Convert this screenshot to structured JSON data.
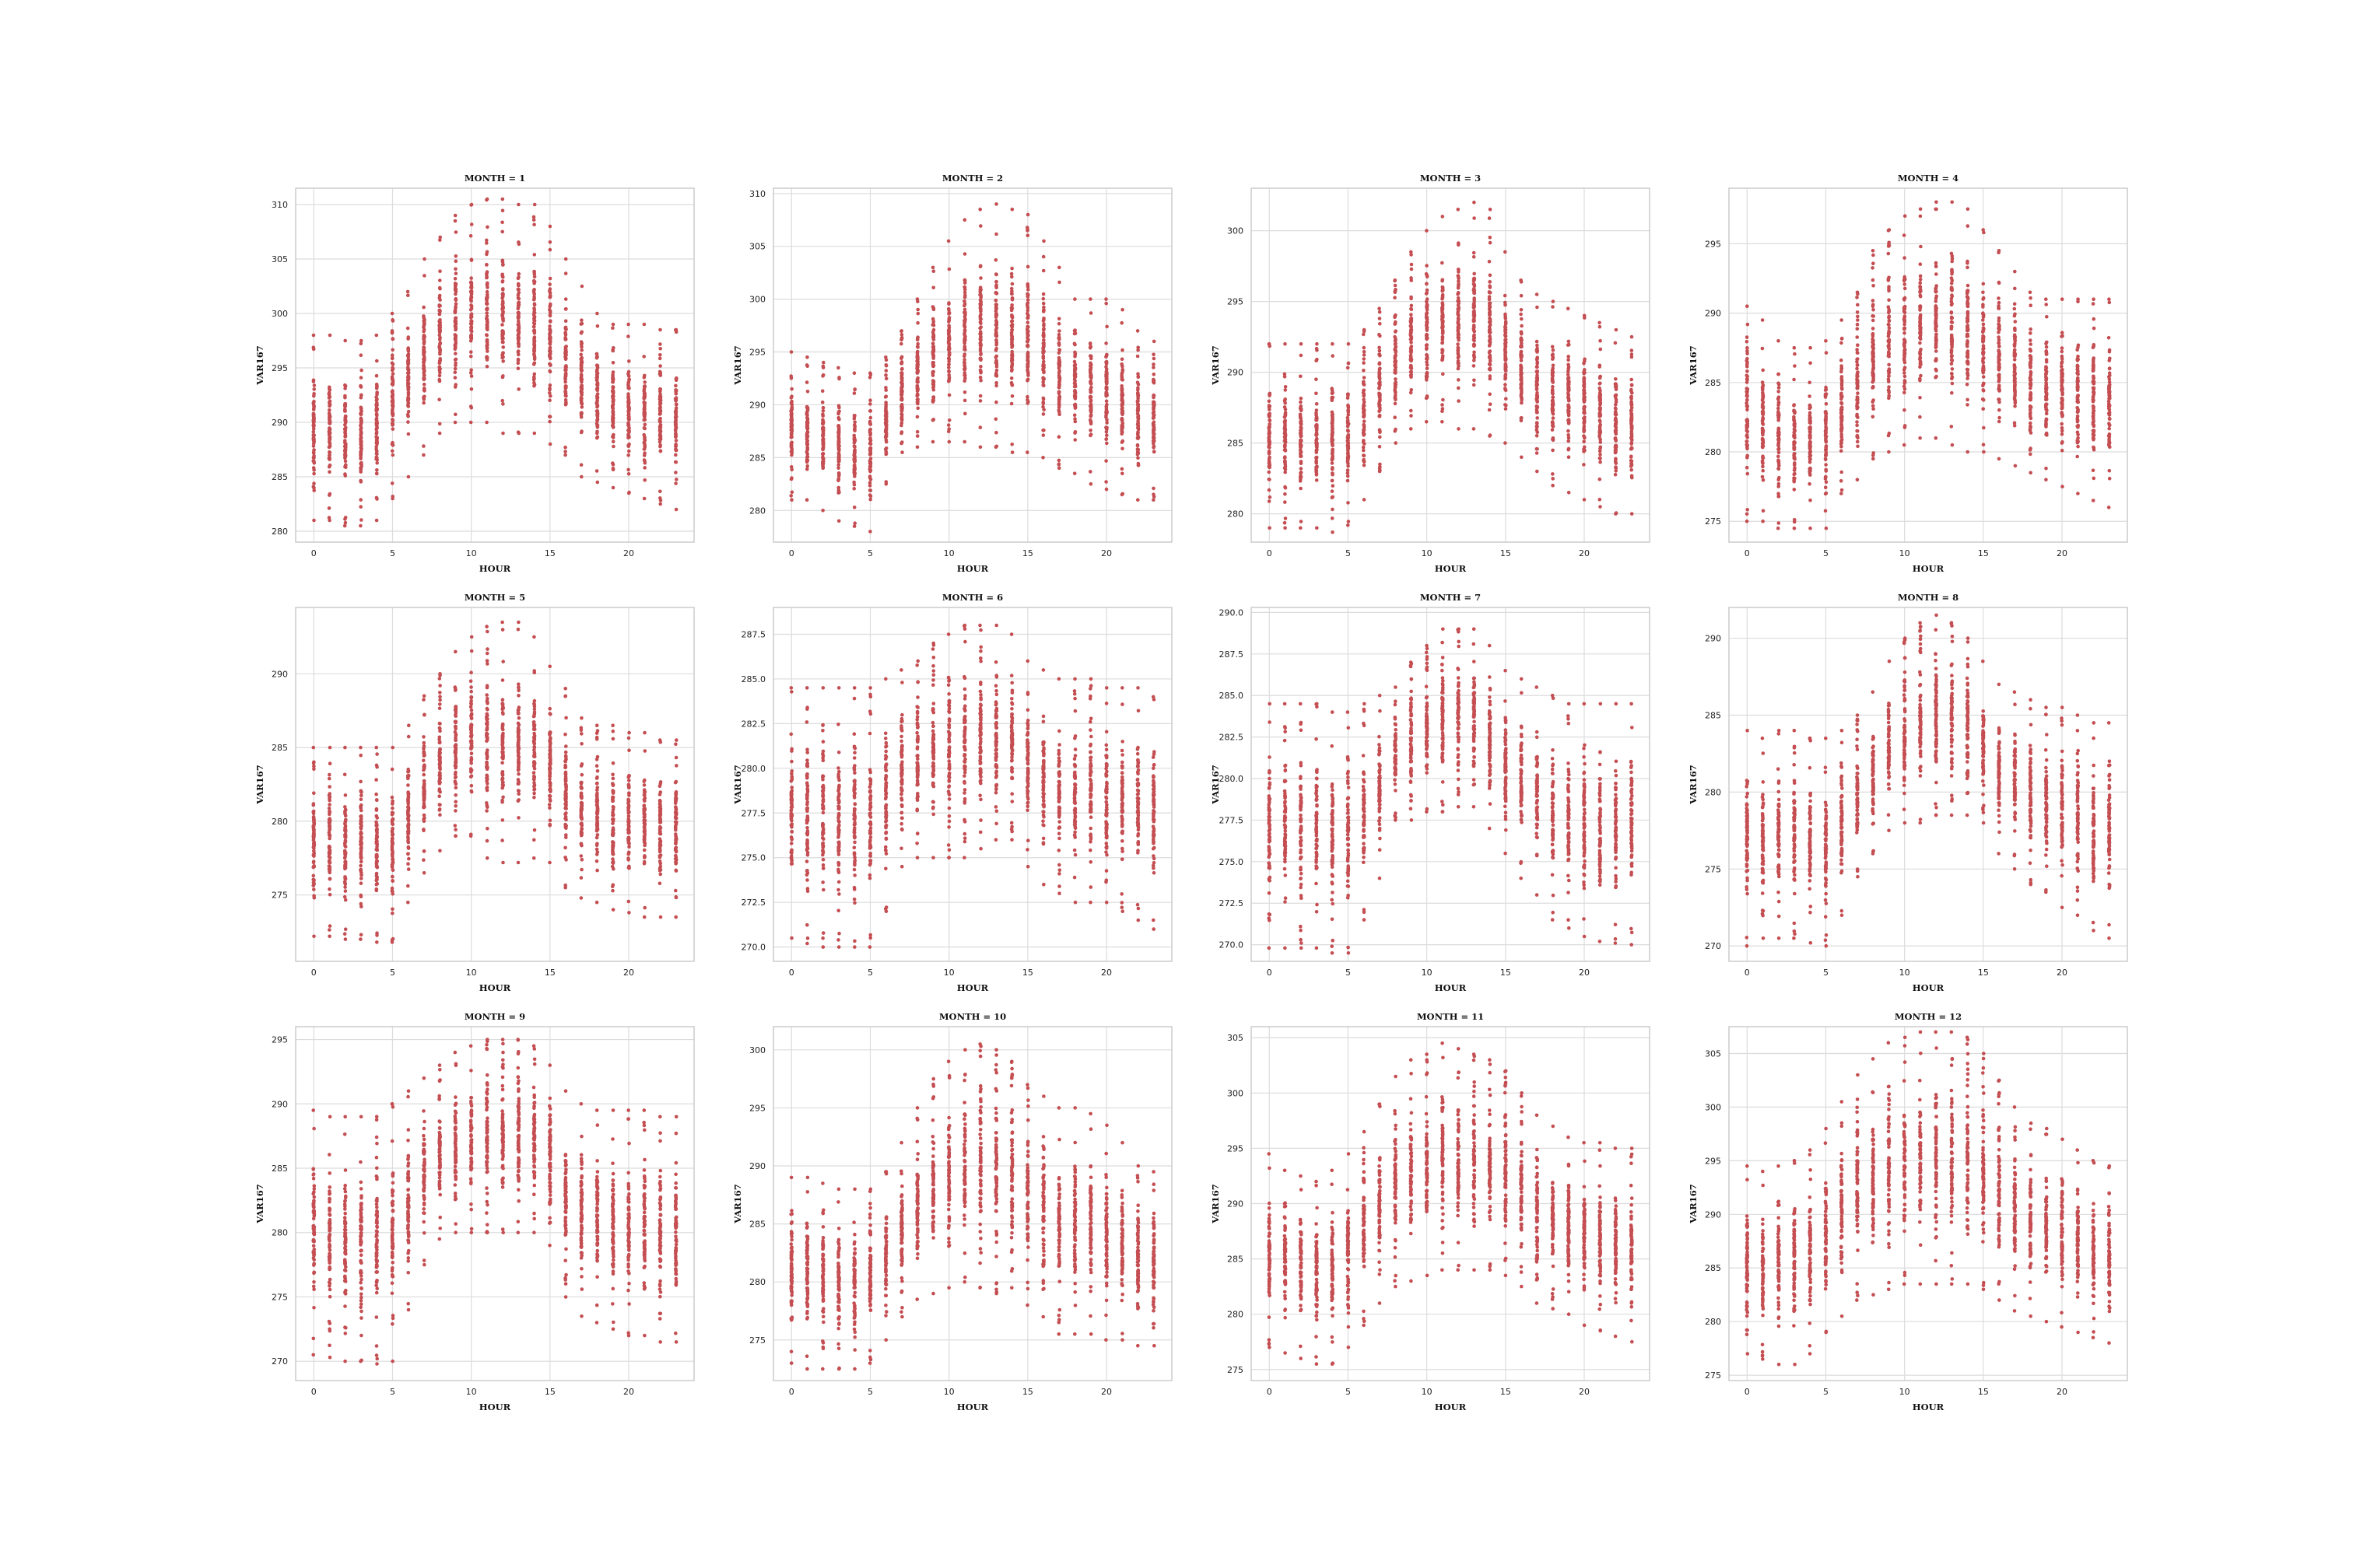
{
  "figure": {
    "panel_title_prefix": "MONTH = ",
    "xlabel": "HOUR",
    "ylabel": "VAR167",
    "point_color": "#c44e52",
    "grid": true
  },
  "chart_data": [
    {
      "type": "scatter",
      "title": "MONTH = 1",
      "xlabel": "HOUR",
      "ylabel": "VAR167",
      "xlim": [
        -1.15,
        24.15
      ],
      "ylim": [
        279,
        311.5
      ],
      "xticks": [
        0,
        5,
        10,
        15,
        20
      ],
      "yticks": [
        280,
        285,
        290,
        295,
        300,
        305,
        310
      ],
      "hourly_min": [
        281,
        281,
        280.5,
        280.5,
        281,
        283,
        285,
        287,
        289,
        290,
        290,
        290,
        289,
        289,
        289,
        288,
        287,
        285,
        284.5,
        284,
        283.5,
        283,
        282.5,
        282
      ],
      "hourly_max": [
        298,
        298,
        297.5,
        297.5,
        298,
        300,
        302,
        305,
        307,
        309,
        310,
        310.5,
        310.5,
        310,
        310,
        308,
        305,
        302.5,
        300,
        299,
        299,
        299,
        298.5,
        298.5
      ]
    },
    {
      "type": "scatter",
      "title": "MONTH = 2",
      "xlabel": "HOUR",
      "ylabel": "VAR167",
      "xlim": [
        -1.15,
        24.15
      ],
      "ylim": [
        277,
        310.5
      ],
      "xticks": [
        0,
        5,
        10,
        15,
        20
      ],
      "yticks": [
        280,
        285,
        290,
        295,
        300,
        305,
        310
      ],
      "hourly_min": [
        281,
        281,
        280,
        279,
        278.5,
        278,
        282.5,
        285.5,
        286,
        286.5,
        286.5,
        286.5,
        286,
        286,
        285.5,
        285.5,
        285,
        284,
        283.5,
        282.5,
        282,
        281.5,
        281,
        281
      ],
      "hourly_max": [
        295,
        294.5,
        294,
        293.5,
        293,
        293,
        294.5,
        297,
        300,
        303,
        305.5,
        307.5,
        308.5,
        309,
        308.5,
        308,
        305.5,
        303,
        300,
        300,
        300,
        299,
        297,
        296
      ]
    },
    {
      "type": "scatter",
      "title": "MONTH = 3",
      "xlabel": "HOUR",
      "ylabel": "VAR167",
      "xlim": [
        -1.15,
        24.15
      ],
      "ylim": [
        278,
        303
      ],
      "xticks": [
        0,
        5,
        10,
        15,
        20
      ],
      "yticks": [
        280,
        285,
        290,
        295,
        300
      ],
      "hourly_min": [
        279,
        279,
        279,
        279,
        278.7,
        279.2,
        281,
        283,
        285,
        286,
        286.5,
        286.5,
        286,
        286,
        285.5,
        285,
        284,
        283,
        282,
        281.5,
        281,
        280.5,
        280,
        280
      ],
      "hourly_max": [
        292,
        292,
        292,
        292,
        292,
        292,
        293,
        294.5,
        296.5,
        298.5,
        300,
        301,
        301.5,
        302,
        301.5,
        298.5,
        296.5,
        295.5,
        295,
        294.5,
        294,
        293.5,
        293,
        292.5
      ]
    },
    {
      "type": "scatter",
      "title": "MONTH = 4",
      "xlabel": "HOUR",
      "ylabel": "VAR167",
      "xlim": [
        -1.15,
        24.15
      ],
      "ylim": [
        273.5,
        299
      ],
      "xticks": [
        0,
        5,
        10,
        15,
        20
      ],
      "yticks": [
        275,
        280,
        285,
        290,
        295
      ],
      "hourly_min": [
        275,
        275,
        274.5,
        274.5,
        274.5,
        274.5,
        277,
        278,
        279.5,
        280,
        280.5,
        281,
        281,
        280.5,
        280,
        280,
        279.5,
        279,
        278.5,
        278,
        277.5,
        277,
        276.5,
        276
      ],
      "hourly_max": [
        290.5,
        289.5,
        288,
        287.5,
        287.5,
        288,
        289.5,
        291.5,
        294.5,
        296,
        297,
        297.5,
        298,
        298,
        297.5,
        296,
        294.5,
        293,
        291.5,
        291,
        291,
        291,
        291,
        291
      ]
    },
    {
      "type": "scatter",
      "title": "MONTH = 5",
      "xlabel": "HOUR",
      "ylabel": "VAR167",
      "xlim": [
        -1.15,
        24.15
      ],
      "ylim": [
        270.5,
        294.5
      ],
      "xticks": [
        0,
        5,
        10,
        15,
        20
      ],
      "yticks": [
        275,
        280,
        285,
        290
      ],
      "hourly_min": [
        272.2,
        272.2,
        272,
        272,
        271.8,
        271.8,
        274.5,
        276.5,
        278,
        279,
        279,
        277.5,
        277.2,
        277.2,
        277.5,
        277.2,
        275.5,
        274.8,
        274.5,
        274,
        273.8,
        273.5,
        273.5,
        273.5
      ],
      "hourly_max": [
        285,
        285,
        285,
        285,
        285,
        285,
        286.5,
        288.5,
        290,
        291.5,
        292.5,
        293.2,
        293.5,
        293.5,
        292.5,
        290.5,
        289,
        287,
        286.5,
        286.5,
        286,
        286,
        285.5,
        285.5
      ]
    },
    {
      "type": "scatter",
      "title": "MONTH = 6",
      "xlabel": "HOUR",
      "ylabel": "VAR167",
      "xlim": [
        -1.15,
        24.15
      ],
      "ylim": [
        269.2,
        289
      ],
      "xticks": [
        0,
        5,
        10,
        15,
        20
      ],
      "yticks": [
        270.0,
        272.5,
        275.0,
        277.5,
        280.0,
        282.5,
        285.0,
        287.5
      ],
      "hourly_min": [
        270.5,
        270.2,
        270,
        270,
        270,
        270,
        272,
        274.5,
        275,
        275,
        275,
        275,
        275.5,
        276,
        276,
        274.5,
        273.5,
        273,
        272.5,
        272.5,
        272.5,
        272,
        271.5,
        271
      ],
      "hourly_max": [
        284.5,
        284.5,
        284.5,
        284.5,
        284.5,
        284.5,
        285,
        285.5,
        286,
        287,
        287.5,
        288,
        288,
        288,
        287.5,
        286,
        285.5,
        285,
        285,
        285,
        284.5,
        284.5,
        284.5,
        284
      ]
    },
    {
      "type": "scatter",
      "title": "MONTH = 7",
      "xlabel": "HOUR",
      "ylabel": "VAR167",
      "xlim": [
        -1.15,
        24.15
      ],
      "ylim": [
        269,
        290.3
      ],
      "xticks": [
        0,
        5,
        10,
        15,
        20
      ],
      "yticks": [
        270.0,
        272.5,
        275.0,
        277.5,
        280.0,
        282.5,
        285.0,
        287.5,
        290.0
      ],
      "hourly_min": [
        269.8,
        269.8,
        269.8,
        269.8,
        269.5,
        269.5,
        271.5,
        274,
        277.5,
        277.5,
        278,
        278,
        278.3,
        278.3,
        277,
        275.5,
        274,
        273,
        271.5,
        271,
        270.5,
        270.2,
        270.1,
        270
      ],
      "hourly_max": [
        284.5,
        284.5,
        284.5,
        284.5,
        284,
        284,
        284.5,
        285,
        285.5,
        287,
        288,
        289,
        289,
        289,
        288,
        286.5,
        286,
        285.5,
        285,
        284.5,
        284.5,
        284.5,
        284.5,
        284.5
      ]
    },
    {
      "type": "scatter",
      "title": "MONTH = 8",
      "xlabel": "HOUR",
      "ylabel": "VAR167",
      "xlim": [
        -1.15,
        24.15
      ],
      "ylim": [
        269,
        292
      ],
      "xticks": [
        0,
        5,
        10,
        15,
        20
      ],
      "yticks": [
        270,
        275,
        280,
        285,
        290
      ],
      "hourly_min": [
        270,
        270.5,
        270.5,
        270.5,
        270.2,
        270,
        272,
        274.5,
        276,
        277.5,
        278,
        278,
        278.5,
        278.5,
        278.5,
        278,
        276,
        275,
        274,
        273.5,
        272.5,
        272,
        271,
        270.5
      ],
      "hourly_max": [
        284,
        283.5,
        284,
        284,
        283.5,
        283.5,
        284,
        285,
        286.5,
        288.5,
        290,
        291,
        291.5,
        291,
        290,
        288.5,
        287,
        286.5,
        286,
        285.5,
        285.5,
        285,
        284.5,
        284.5
      ]
    },
    {
      "type": "scatter",
      "title": "MONTH = 9",
      "xlabel": "HOUR",
      "ylabel": "VAR167",
      "xlim": [
        -1.15,
        24.15
      ],
      "ylim": [
        268.5,
        296
      ],
      "xticks": [
        0,
        5,
        10,
        15,
        20
      ],
      "yticks": [
        270,
        275,
        280,
        285,
        290,
        295
      ],
      "hourly_min": [
        270.5,
        270.3,
        270,
        270,
        269.8,
        270,
        274,
        277.5,
        279.5,
        280,
        280,
        280,
        280,
        280,
        280,
        279,
        275,
        273.5,
        273,
        272.5,
        272,
        272,
        271.5,
        271.5
      ],
      "hourly_max": [
        289.5,
        289,
        289,
        289,
        289,
        290,
        291,
        292,
        293,
        294,
        294.5,
        295,
        295,
        295,
        294.5,
        293,
        291,
        290,
        289.5,
        289.5,
        289.5,
        289.5,
        289,
        289
      ]
    },
    {
      "type": "scatter",
      "title": "MONTH = 10",
      "xlabel": "HOUR",
      "ylabel": "VAR167",
      "xlim": [
        -1.15,
        24.15
      ],
      "ylim": [
        271.5,
        302
      ],
      "xticks": [
        0,
        5,
        10,
        15,
        20
      ],
      "yticks": [
        275,
        280,
        285,
        290,
        295,
        300
      ],
      "hourly_min": [
        273,
        272.5,
        272.5,
        272.5,
        272.5,
        273,
        275,
        277,
        278.5,
        279,
        279.5,
        280,
        279.5,
        279,
        279.5,
        278,
        277,
        275.5,
        275.5,
        275.5,
        275,
        275,
        274.5,
        274.5
      ],
      "hourly_max": [
        289,
        289,
        288.5,
        288,
        288,
        288,
        289.5,
        292,
        295,
        297.5,
        299,
        300,
        300.5,
        300,
        299,
        297,
        296,
        295,
        295,
        294.5,
        293.5,
        292,
        290,
        289.5
      ]
    },
    {
      "type": "scatter",
      "title": "MONTH = 11",
      "xlabel": "HOUR",
      "ylabel": "VAR167",
      "xlim": [
        -1.15,
        24.15
      ],
      "ylim": [
        274,
        306
      ],
      "xticks": [
        0,
        5,
        10,
        15,
        20
      ],
      "yticks": [
        275,
        280,
        285,
        290,
        295,
        300,
        305
      ],
      "hourly_min": [
        277,
        276.5,
        276,
        275.5,
        275.5,
        277,
        279,
        281,
        282.5,
        283,
        283.5,
        284,
        284,
        284,
        284,
        283.5,
        282.5,
        281,
        280.5,
        280,
        279,
        278.5,
        278,
        277.5
      ],
      "hourly_max": [
        294.5,
        293,
        292.5,
        292,
        293,
        294.5,
        296.5,
        299,
        301.5,
        303,
        303.5,
        304.5,
        304,
        303.5,
        303,
        302,
        300,
        298,
        297,
        296,
        295.5,
        295.5,
        295,
        295
      ]
    },
    {
      "type": "scatter",
      "title": "MONTH = 12",
      "xlabel": "HOUR",
      "ylabel": "VAR167",
      "xlim": [
        -1.15,
        24.15
      ],
      "ylim": [
        274.5,
        307.5
      ],
      "xticks": [
        0,
        5,
        10,
        15,
        20
      ],
      "yticks": [
        275,
        280,
        285,
        290,
        295,
        300,
        305
      ],
      "hourly_min": [
        277,
        276.5,
        276,
        276,
        277,
        279,
        280.5,
        282,
        282.5,
        283,
        283.5,
        283.5,
        283.5,
        283.5,
        283.5,
        283,
        282,
        281,
        280.5,
        280,
        279.5,
        279,
        278.5,
        278
      ],
      "hourly_max": [
        294.5,
        294,
        294.5,
        295,
        296,
        298,
        300.5,
        303,
        304.5,
        306,
        306.5,
        307,
        307,
        307,
        306.5,
        305,
        302.5,
        300,
        298.5,
        298,
        297,
        296,
        295,
        294.5
      ]
    }
  ]
}
